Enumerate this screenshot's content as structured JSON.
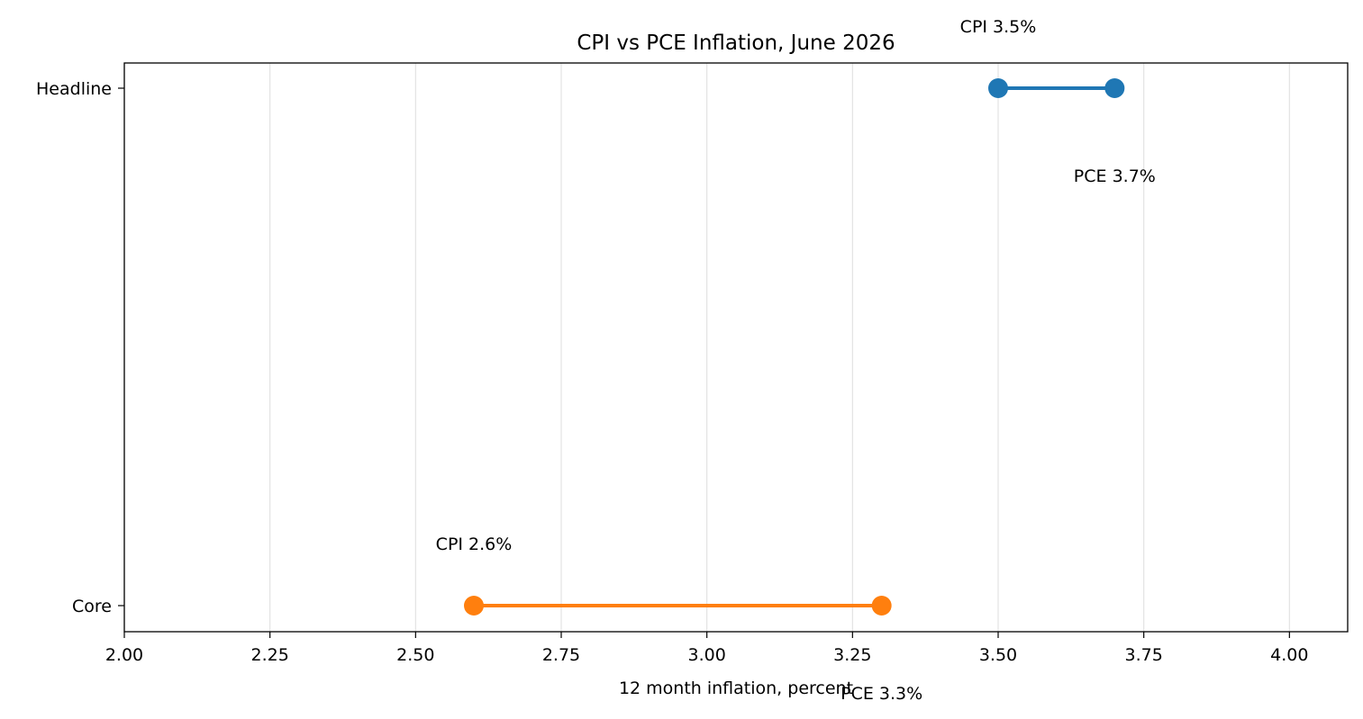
{
  "chart_data": {
    "type": "dumbbell",
    "title": "CPI vs PCE Inflation, June 2026",
    "xlabel": "12 month inflation, percent",
    "ylabel": "",
    "xlim": [
      2.0,
      4.1
    ],
    "xticks": [
      2.0,
      2.25,
      2.5,
      2.75,
      3.0,
      3.25,
      3.5,
      3.75,
      4.0
    ],
    "xtick_labels": [
      "2.00",
      "2.25",
      "2.50",
      "2.75",
      "3.00",
      "3.25",
      "3.50",
      "3.75",
      "4.00"
    ],
    "categories": [
      "Headline",
      "Core"
    ],
    "grid": "x-only",
    "rows": [
      {
        "category": "Headline",
        "cpi": 3.5,
        "pce": 3.7,
        "color": "#1f77b4",
        "cpi_label": "CPI 3.5%",
        "pce_label": "PCE 3.7%"
      },
      {
        "category": "Core",
        "cpi": 2.6,
        "pce": 3.3,
        "color": "#ff7f0e",
        "cpi_label": "CPI 2.6%",
        "pce_label": "PCE 3.3%"
      }
    ]
  }
}
